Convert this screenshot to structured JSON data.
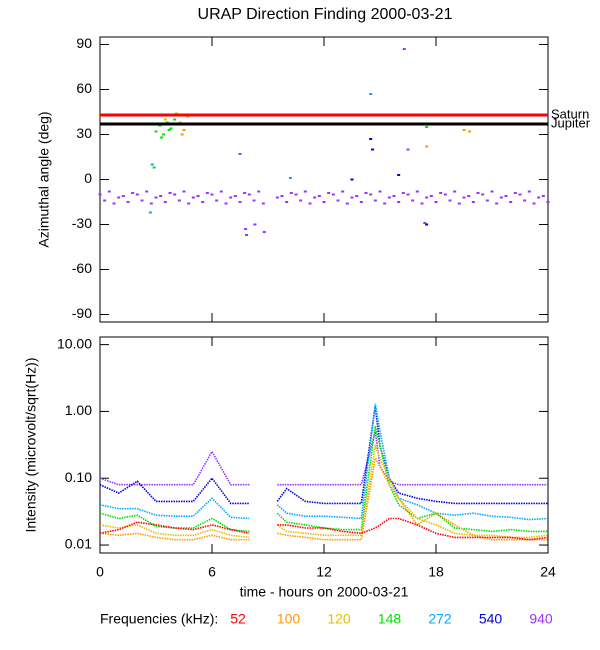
{
  "chart_data": [
    {
      "type": "scatter",
      "title": "URAP Direction Finding  2000-03-21",
      "ylabel": "Azimuthal angle (deg)",
      "xlim": [
        0,
        24
      ],
      "xticks": [
        0,
        6,
        12,
        18,
        24
      ],
      "ylim": [
        -95,
        95
      ],
      "yticks": [
        90,
        60,
        30,
        0,
        -30,
        -60,
        -90
      ],
      "reference_lines": [
        {
          "label": "Saturn",
          "value": 43,
          "color": "#ff0000"
        },
        {
          "label": "Jupiter",
          "value": 37,
          "color": "#000000"
        }
      ],
      "series": [
        {
          "color": "#9933ff",
          "x": [
            0,
            0.25,
            0.5,
            0.75,
            1,
            1.25,
            1.5,
            1.75,
            2,
            2.25,
            2.5,
            2.75,
            3,
            3.25,
            3.5,
            3.75,
            4,
            4.25,
            4.5,
            4.75,
            5,
            5.25,
            5.5,
            5.75,
            6,
            6.25,
            6.5,
            6.75,
            7,
            7.25,
            7.5,
            7.75,
            8,
            8.25,
            8.5,
            8.75,
            9.5,
            9.75,
            10,
            10.25,
            10.5,
            10.75,
            11,
            11.25,
            11.5,
            11.75,
            12,
            12.25,
            12.5,
            12.75,
            13,
            13.25,
            13.5,
            13.75,
            14,
            14.25,
            14.5,
            14.75,
            15,
            15.25,
            15.5,
            15.75,
            16,
            16.25,
            16.5,
            16.75,
            17,
            17.25,
            17.5,
            17.75,
            18,
            18.25,
            18.5,
            18.75,
            19,
            19.25,
            19.5,
            19.75,
            20,
            20.25,
            20.5,
            20.75,
            21,
            21.25,
            21.5,
            21.75,
            22,
            22.25,
            22.5,
            22.75,
            23,
            23.25,
            23.5,
            23.75,
            24
          ],
          "values": [
            -10,
            -14,
            -8,
            -16,
            -12,
            -11,
            -15,
            -9,
            -10,
            -14,
            -8,
            -16,
            -12,
            -11,
            -15,
            -9,
            -10,
            -14,
            -8,
            -16,
            -12,
            -11,
            -15,
            -9,
            -10,
            -14,
            -8,
            -16,
            -12,
            -11,
            -15,
            -9,
            -10,
            -14,
            -8,
            -16,
            -12,
            -11,
            -15,
            -9,
            -10,
            -14,
            -8,
            -16,
            -12,
            -11,
            -15,
            -9,
            -10,
            -14,
            -8,
            -16,
            -12,
            -11,
            -15,
            -9,
            -10,
            -14,
            -8,
            -16,
            -12,
            -11,
            -15,
            -9,
            -10,
            -14,
            -8,
            -16,
            -12,
            -11,
            -15,
            -9,
            -10,
            -14,
            -8,
            -16,
            -12,
            -11,
            -15,
            -9,
            -10,
            -14,
            -8,
            -16,
            -12,
            -11,
            -15,
            -9,
            -10,
            -14,
            -8,
            -16,
            -12,
            -11,
            -15
          ]
        },
        {
          "color": "#9933ff",
          "x": [
            16.3,
            7.5,
            7.8,
            7.85,
            8.3,
            8.8,
            16.5,
            17.4
          ],
          "values": [
            87,
            17,
            -33,
            -37,
            -30,
            -35,
            20,
            -29
          ]
        },
        {
          "color": "#0000e0",
          "x": [
            14.5,
            14.6,
            16.0,
            17.5,
            13.5
          ],
          "values": [
            27,
            20,
            3,
            -30,
            0
          ]
        },
        {
          "color": "#00aaff",
          "x": [
            2.8,
            14.5,
            10.2,
            2.7
          ],
          "values": [
            10,
            57,
            1,
            -22
          ]
        },
        {
          "color": "#00e000",
          "x": [
            3.0,
            3.2,
            3.4,
            3.6,
            3.8,
            4.0,
            3.3,
            3.7,
            2.9,
            17.5
          ],
          "values": [
            32,
            36,
            30,
            38,
            34,
            40,
            28,
            33,
            8,
            35
          ]
        },
        {
          "color": "#e0c000",
          "x": [
            3.5,
            4.1
          ],
          "values": [
            40,
            44
          ]
        },
        {
          "color": "#ff9900",
          "x": [
            4.3,
            4.5,
            4.7,
            4.4,
            17.5,
            19.5,
            19.8
          ],
          "values": [
            38,
            33,
            42,
            30,
            22,
            33,
            32
          ]
        }
      ]
    },
    {
      "type": "line",
      "ylabel": "Intensity (microvolt/sqrt(Hz))",
      "xlabel": "time - hours on 2000-03-21",
      "legend_title": "Frequencies (kHz):",
      "log": true,
      "xlim": [
        0,
        24
      ],
      "xticks": [
        0,
        6,
        12,
        18,
        24
      ],
      "ylim": [
        0.0076,
        13
      ],
      "yticks": [
        {
          "value": 10,
          "label": "10.00"
        },
        {
          "value": 1,
          "label": "1.00"
        },
        {
          "value": 0.1,
          "label": "0.10"
        },
        {
          "value": 0.01,
          "label": "0.01"
        }
      ],
      "x": [
        0,
        1,
        2,
        3,
        4,
        5,
        6,
        7,
        8,
        9,
        9.5,
        10,
        11,
        12,
        13,
        14,
        14.75,
        15,
        15.5,
        16,
        17,
        18,
        19,
        20,
        21,
        22,
        23,
        24
      ],
      "series": [
        {
          "name": "52",
          "color": "#ff0000",
          "values": [
            0.015,
            0.017,
            0.022,
            0.02,
            0.018,
            0.017,
            0.02,
            0.017,
            0.015,
            null,
            0.02,
            0.02,
            0.018,
            0.018,
            0.016,
            0.015,
            0.018,
            0.02,
            0.025,
            0.025,
            0.02,
            0.015,
            0.013,
            0.013,
            0.013,
            0.013,
            0.012,
            0.013
          ]
        },
        {
          "name": "100",
          "color": "#ff9900",
          "values": [
            0.015,
            0.014,
            0.015,
            0.013,
            0.012,
            0.012,
            0.014,
            0.012,
            0.012,
            null,
            0.015,
            0.014,
            0.013,
            0.012,
            0.012,
            0.012,
            0.2,
            0.15,
            0.08,
            0.05,
            0.02,
            0.03,
            0.02,
            0.014,
            0.012,
            0.012,
            0.012,
            0.012
          ]
        },
        {
          "name": "120",
          "color": "#e0c000",
          "values": [
            0.02,
            0.018,
            0.02,
            0.015,
            0.014,
            0.014,
            0.017,
            0.014,
            0.013,
            null,
            0.02,
            0.016,
            0.015,
            0.014,
            0.014,
            0.014,
            0.3,
            0.2,
            0.1,
            0.05,
            0.025,
            0.02,
            0.015,
            0.014,
            0.014,
            0.013,
            0.013,
            0.014
          ]
        },
        {
          "name": "148",
          "color": "#00e000",
          "values": [
            0.03,
            0.025,
            0.028,
            0.019,
            0.018,
            0.018,
            0.025,
            0.017,
            0.016,
            null,
            0.03,
            0.022,
            0.02,
            0.018,
            0.017,
            0.017,
            0.6,
            0.3,
            0.08,
            0.04,
            0.025,
            0.03,
            0.018,
            0.017,
            0.016,
            0.017,
            0.016,
            0.016
          ]
        },
        {
          "name": "272",
          "color": "#00aaff",
          "values": [
            0.04,
            0.035,
            0.035,
            0.028,
            0.027,
            0.027,
            0.05,
            0.026,
            0.025,
            null,
            0.04,
            0.03,
            0.027,
            0.027,
            0.026,
            0.025,
            1.3,
            0.5,
            0.1,
            0.05,
            0.04,
            0.03,
            0.028,
            0.03,
            0.027,
            0.026,
            0.024,
            0.025
          ]
        },
        {
          "name": "540",
          "color": "#0000e0",
          "values": [
            0.08,
            0.06,
            0.09,
            0.045,
            0.045,
            0.045,
            0.1,
            0.042,
            0.042,
            null,
            0.045,
            0.07,
            0.045,
            0.042,
            0.042,
            0.042,
            1.2,
            0.3,
            0.1,
            0.06,
            0.05,
            0.045,
            0.042,
            0.042,
            0.042,
            0.042,
            0.042,
            0.042
          ]
        },
        {
          "name": "940",
          "color": "#9933ff",
          "values": [
            0.1,
            0.08,
            0.08,
            0.08,
            0.08,
            0.08,
            0.25,
            0.08,
            0.08,
            null,
            0.08,
            0.08,
            0.08,
            0.08,
            0.08,
            0.08,
            0.5,
            0.15,
            0.09,
            0.08,
            0.08,
            0.08,
            0.08,
            0.08,
            0.08,
            0.08,
            0.08,
            0.08
          ]
        }
      ]
    }
  ]
}
